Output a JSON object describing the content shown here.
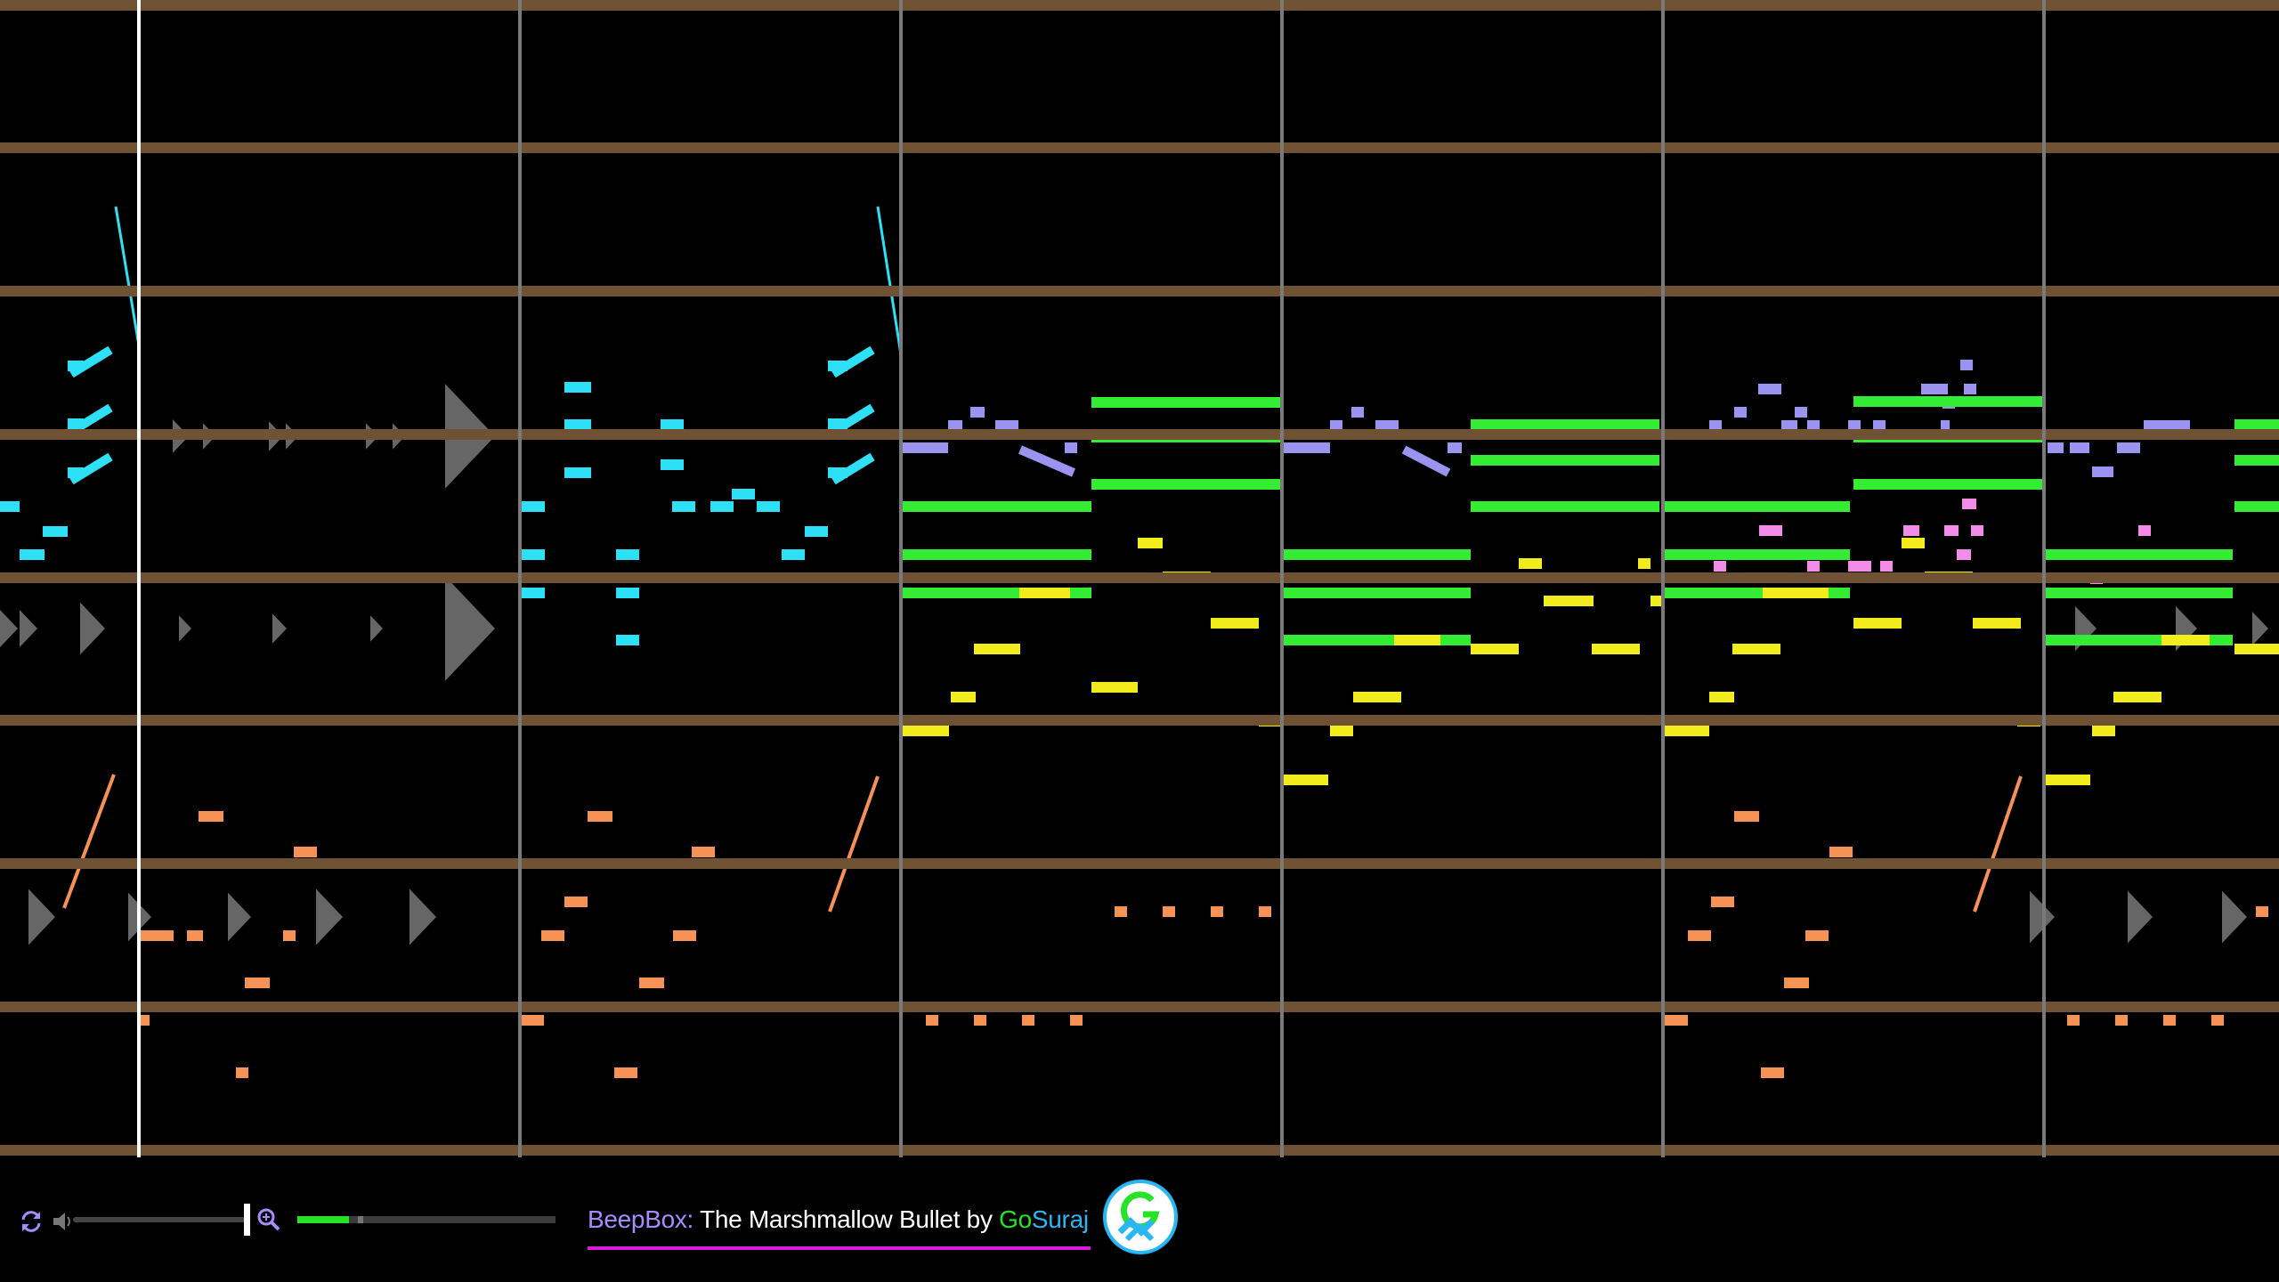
{
  "app": {
    "name": "BeepBox:",
    "song_title": "The Marshmallow Bullet",
    "by": "by",
    "author_part1": "Go",
    "author_part2": "Suraj"
  },
  "player": {
    "loop_icon": "loop-icon",
    "volume_icon": "speaker-icon",
    "zoom_icon": "zoom-in-icon",
    "volume_level": 0.97,
    "song_progress": 0.1
  },
  "colors": {
    "background": "#000000",
    "pitch_row_line": "#6e5233",
    "bar_line": "#7a7a7a",
    "playhead": "#ffffff",
    "channels": [
      "#2de0f5",
      "#9a94f0",
      "#33ec33",
      "#f2ec1c",
      "#f28ce8",
      "#f79256",
      "#888888"
    ],
    "app_name": "#a78bff",
    "author_go": "#27e327",
    "author_suraj": "#29b6f6",
    "progress": "#27e327",
    "underline": "#d81bd8"
  },
  "piano_roll": {
    "bars_visible": 6,
    "playhead_bar_position": 0.2,
    "channels": [
      "cyan",
      "lavender",
      "green",
      "yellow",
      "pink",
      "orange",
      "drums"
    ]
  }
}
